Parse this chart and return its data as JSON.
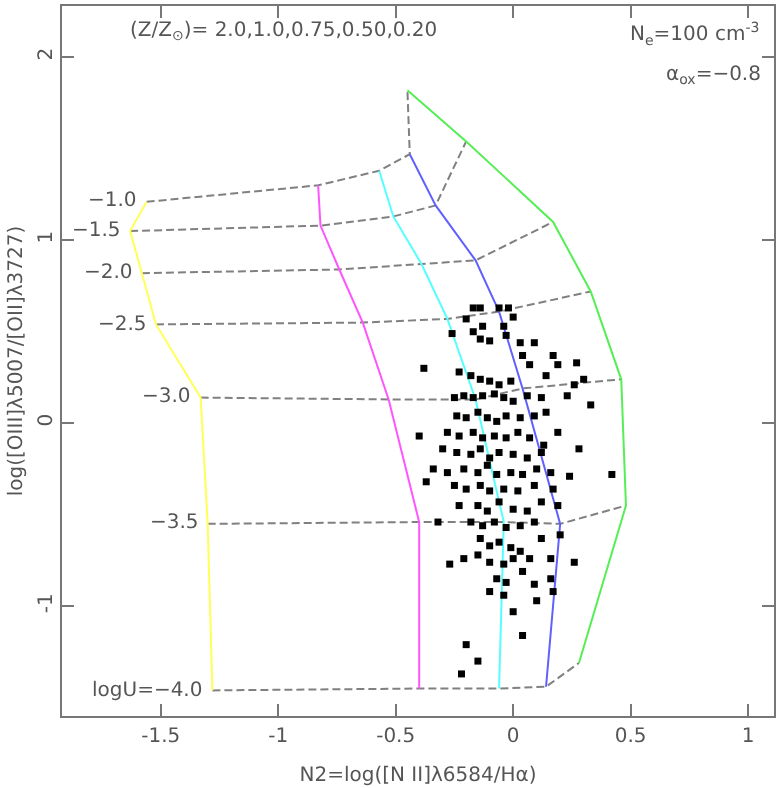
{
  "chart_data": {
    "type": "scatter",
    "xlabel": "N2=log([N II]λ6584/Hα)",
    "ylabel": "log([OIII]λ5007/[OII]λ3727)",
    "xlim": [
      -1.92,
      1.11
    ],
    "xticks": [
      -1.5,
      -1,
      -0.5,
      0,
      0.5,
      1
    ],
    "ylim": [
      -1.6,
      2.28
    ],
    "yticks": [
      -1,
      0,
      1,
      2
    ],
    "grid": false,
    "annotations": [
      "(Z/Z$_{⊙}$)= 2.0,1.0,0.75,0.50,0.20",
      "N$_{e}$=100 cm$^{-3}$",
      "α$_{ox}$=−0.8",
      {
        "text": "−1.0",
        "x": -1.56,
        "y": 1.21
      },
      {
        "text": "−1.5",
        "x": -1.63,
        "y": 1.05
      },
      {
        "text": "−2.0",
        "x": -1.58,
        "y": 0.82
      },
      {
        "text": "−2.5",
        "x": -1.52,
        "y": 0.54
      },
      {
        "text": "−3.0",
        "x": -1.33,
        "y": 0.14
      },
      {
        "text": "−3.5",
        "x": -1.3,
        "y": -0.55
      },
      {
        "text": "logU=−4.0",
        "x": -1.28,
        "y": -1.46
      }
    ],
    "series": [
      {
        "type": "line",
        "line_style": "dashed",
        "color": "#808080",
        "x": [
          -1.56,
          -0.83,
          -0.57,
          -0.44,
          -0.45
        ],
        "values": [
          1.21,
          1.3,
          1.38,
          1.47,
          1.82
        ]
      },
      {
        "type": "line",
        "line_style": "dashed",
        "color": "#808080",
        "x": [
          -1.63,
          -0.82,
          -0.51,
          -0.33,
          -0.2
        ],
        "values": [
          1.05,
          1.08,
          1.13,
          1.19,
          1.54
        ]
      },
      {
        "type": "line",
        "line_style": "dashed",
        "color": "#808080",
        "x": [
          -1.58,
          -0.74,
          -0.39,
          -0.16,
          0.17
        ],
        "values": [
          0.82,
          0.84,
          0.87,
          0.89,
          1.1
        ]
      },
      {
        "type": "line",
        "line_style": "dashed",
        "color": "#808080",
        "x": [
          -1.52,
          -0.64,
          -0.28,
          -0.06,
          0.33
        ],
        "values": [
          0.54,
          0.55,
          0.57,
          0.61,
          0.72
        ]
      },
      {
        "type": "line",
        "line_style": "dashed",
        "color": "#808080",
        "x": [
          -1.33,
          -0.53,
          -0.16,
          0.04,
          0.46
        ],
        "values": [
          0.14,
          0.13,
          0.13,
          0.19,
          0.24
        ]
      },
      {
        "type": "line",
        "line_style": "dashed",
        "color": "#808080",
        "x": [
          -1.3,
          -0.4,
          -0.04,
          0.2,
          0.48
        ],
        "values": [
          -0.55,
          -0.54,
          -0.54,
          -0.55,
          -0.45
        ]
      },
      {
        "type": "line",
        "line_style": "dashed",
        "color": "#808080",
        "x": [
          -1.28,
          -0.4,
          -0.06,
          0.14,
          0.28
        ],
        "values": [
          -1.46,
          -1.45,
          -1.45,
          -1.44,
          -1.31
        ]
      },
      {
        "type": "line",
        "line_style": "solid",
        "color": "#ffff55",
        "x": [
          -1.56,
          -1.63,
          -1.58,
          -1.52,
          -1.33,
          -1.3,
          -1.28
        ],
        "values": [
          1.21,
          1.05,
          0.82,
          0.54,
          0.14,
          -0.55,
          -1.46
        ]
      },
      {
        "type": "line",
        "line_style": "solid",
        "color": "#ff55ff",
        "x": [
          -0.83,
          -0.82,
          -0.74,
          -0.64,
          -0.53,
          -0.4,
          -0.4
        ],
        "values": [
          1.3,
          1.08,
          0.84,
          0.55,
          0.13,
          -0.54,
          -1.45
        ]
      },
      {
        "type": "line",
        "line_style": "solid",
        "color": "#55ffff",
        "x": [
          -0.57,
          -0.51,
          -0.39,
          -0.28,
          -0.16,
          -0.04,
          -0.06
        ],
        "values": [
          1.38,
          1.13,
          0.87,
          0.57,
          0.13,
          -0.54,
          -1.45
        ]
      },
      {
        "type": "line",
        "line_style": "solid",
        "color": "#6060ff",
        "x": [
          -0.44,
          -0.33,
          -0.16,
          -0.06,
          0.04,
          0.2,
          0.14
        ],
        "values": [
          1.47,
          1.19,
          0.89,
          0.61,
          0.19,
          -0.55,
          -1.44
        ]
      },
      {
        "type": "line",
        "line_style": "solid",
        "color": "#55ee55",
        "x": [
          -0.45,
          -0.2,
          0.17,
          0.33,
          0.46,
          0.48,
          0.28
        ],
        "values": [
          1.82,
          1.54,
          1.1,
          0.72,
          0.24,
          -0.45,
          -1.31
        ]
      },
      {
        "marker": "square",
        "color": "#000000",
        "x": [
          -0.17,
          -0.14,
          -0.06,
          -0.02,
          -0.2,
          0.0,
          -0.04,
          -0.13,
          -0.17,
          -0.14,
          -0.1,
          -0.03,
          0.03,
          0.09,
          -0.26,
          0.04,
          0.07,
          0.17,
          0.19,
          0.14,
          0.27,
          0.3,
          0.33,
          0.26,
          0.23,
          -0.38,
          -0.23,
          -0.18,
          -0.14,
          -0.1,
          -0.06,
          -0.01,
          -0.25,
          -0.21,
          -0.17,
          -0.13,
          -0.08,
          -0.04,
          0.0,
          0.06,
          0.12,
          -0.24,
          -0.2,
          -0.15,
          -0.11,
          -0.07,
          -0.03,
          0.03,
          0.09,
          0.14,
          -0.28,
          -0.23,
          -0.17,
          -0.13,
          -0.08,
          -0.03,
          0.02,
          0.07,
          0.13,
          0.19,
          -0.4,
          -0.3,
          -0.24,
          -0.18,
          -0.14,
          -0.1,
          -0.06,
          0.0,
          0.06,
          0.12,
          0.28,
          -0.34,
          -0.28,
          -0.21,
          -0.15,
          -0.11,
          -0.07,
          -0.01,
          0.04,
          0.1,
          0.16,
          0.24,
          -0.37,
          -0.25,
          -0.2,
          -0.14,
          -0.1,
          -0.04,
          0.02,
          0.09,
          0.17,
          0.42,
          -0.23,
          -0.15,
          -0.11,
          -0.06,
          0.0,
          0.06,
          0.12,
          0.19,
          -0.18,
          -0.13,
          -0.08,
          -0.03,
          0.03,
          0.09,
          -0.32,
          -0.14,
          -0.1,
          -0.06,
          -0.01,
          0.03,
          0.12,
          0.2,
          -0.21,
          -0.15,
          -0.1,
          -0.04,
          0.0,
          0.07,
          0.16,
          -0.27,
          -0.07,
          -0.03,
          0.04,
          0.09,
          -0.1,
          -0.04,
          0.16,
          0.17,
          0.1,
          0.0,
          -0.2,
          0.04,
          -0.15,
          -0.22,
          0.26
        ],
        "values": [
          0.63,
          0.63,
          0.63,
          0.63,
          0.57,
          0.58,
          0.53,
          0.53,
          0.5,
          0.46,
          0.45,
          0.48,
          0.44,
          0.44,
          0.49,
          0.37,
          0.32,
          0.37,
          0.32,
          0.26,
          0.33,
          0.24,
          0.1,
          0.21,
          0.15,
          0.3,
          0.28,
          0.26,
          0.24,
          0.23,
          0.21,
          0.23,
          0.14,
          0.15,
          0.14,
          0.15,
          0.16,
          0.14,
          0.12,
          0.15,
          0.14,
          0.04,
          0.03,
          0.06,
          0.03,
          0.01,
          0.04,
          0.03,
          0.04,
          0.06,
          -0.05,
          -0.07,
          -0.05,
          -0.08,
          -0.07,
          -0.08,
          -0.05,
          -0.08,
          -0.12,
          -0.05,
          -0.07,
          -0.14,
          -0.16,
          -0.17,
          -0.14,
          -0.19,
          -0.16,
          -0.17,
          -0.19,
          -0.16,
          -0.14,
          -0.25,
          -0.27,
          -0.25,
          -0.27,
          -0.23,
          -0.28,
          -0.27,
          -0.28,
          -0.25,
          -0.27,
          -0.29,
          -0.32,
          -0.34,
          -0.36,
          -0.34,
          -0.37,
          -0.36,
          -0.37,
          -0.34,
          -0.36,
          -0.28,
          -0.45,
          -0.45,
          -0.48,
          -0.43,
          -0.47,
          -0.48,
          -0.43,
          -0.45,
          -0.54,
          -0.56,
          -0.54,
          -0.57,
          -0.56,
          -0.54,
          -0.54,
          -0.63,
          -0.67,
          -0.65,
          -0.68,
          -0.7,
          -0.63,
          -0.61,
          -0.74,
          -0.72,
          -0.76,
          -0.77,
          -0.74,
          -0.74,
          -0.74,
          -0.77,
          -0.85,
          -0.87,
          -0.81,
          -0.88,
          -0.92,
          -0.94,
          -0.85,
          -0.92,
          -0.97,
          -1.03,
          -1.21,
          -1.16,
          -1.3,
          -1.37,
          -0.76
        ]
      }
    ]
  }
}
